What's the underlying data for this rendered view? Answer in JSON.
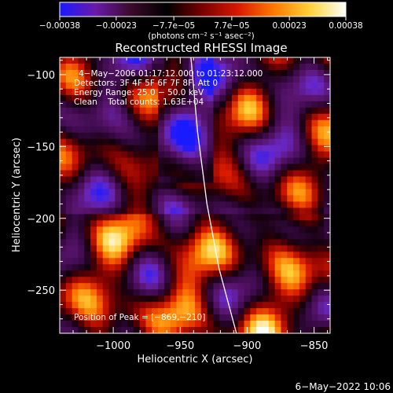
{
  "colorbar": {
    "tick_values": [
      -0.00038,
      -0.00023,
      -7.7e-05,
      7.7e-05,
      0.00023,
      0.00038
    ],
    "tick_labels": [
      "−0.00038",
      "−0.00023",
      "−7.7e−05",
      "7.7e−05",
      "0.00023",
      "0.00038"
    ],
    "range": [
      -0.00038,
      0.00038
    ],
    "units_label": "(photons cm⁻² s⁻¹ asec⁻²)",
    "colors": [
      "#1a1aff",
      "#6a1aa8",
      "#3a0a2a",
      "#000000",
      "#7a0000",
      "#d81a00",
      "#ff7a00",
      "#ffd23a",
      "#ffffff"
    ]
  },
  "image": {
    "title": "Reconstructed RHESSI Image",
    "annotations": [
      "4−May−2006 01:17:12.000 to 01:23:12.000",
      "Detectors: 3F 4F 5F 6F 7F 8F, Att 0",
      "Energy Range: 25.0 − 50.0 keV",
      "Clean    Total counts: 1.63E+04"
    ],
    "peak_label": "Position of Peak = [−869,−210]"
  },
  "chart_data": {
    "type": "heatmap",
    "title": "Reconstructed RHESSI Image",
    "xlabel": "Heliocentric X (arcsec)",
    "ylabel": "Heliocentric Y (arcsec)",
    "xlim": [
      -1040,
      -838
    ],
    "ylim": [
      -280,
      -88
    ],
    "x_ticks": [
      -1000,
      -950,
      -900,
      -850
    ],
    "x_tick_labels": [
      "−1000",
      "−950",
      "−900",
      "−850"
    ],
    "y_ticks": [
      -100,
      -150,
      -200,
      -250
    ],
    "y_tick_labels": [
      "−100",
      "−150",
      "−200",
      "−250"
    ],
    "color_range": [
      -0.00038,
      0.00038
    ],
    "limb_curve": [
      [
        -942,
        -88
      ],
      [
        -937,
        -140
      ],
      [
        -930,
        -190
      ],
      [
        -921,
        -235
      ],
      [
        -908,
        -280
      ]
    ],
    "peak_position": [
      -869,
      -210
    ],
    "grid": false
  },
  "footer": {
    "timestamp": "6−May−2022 10:06"
  }
}
